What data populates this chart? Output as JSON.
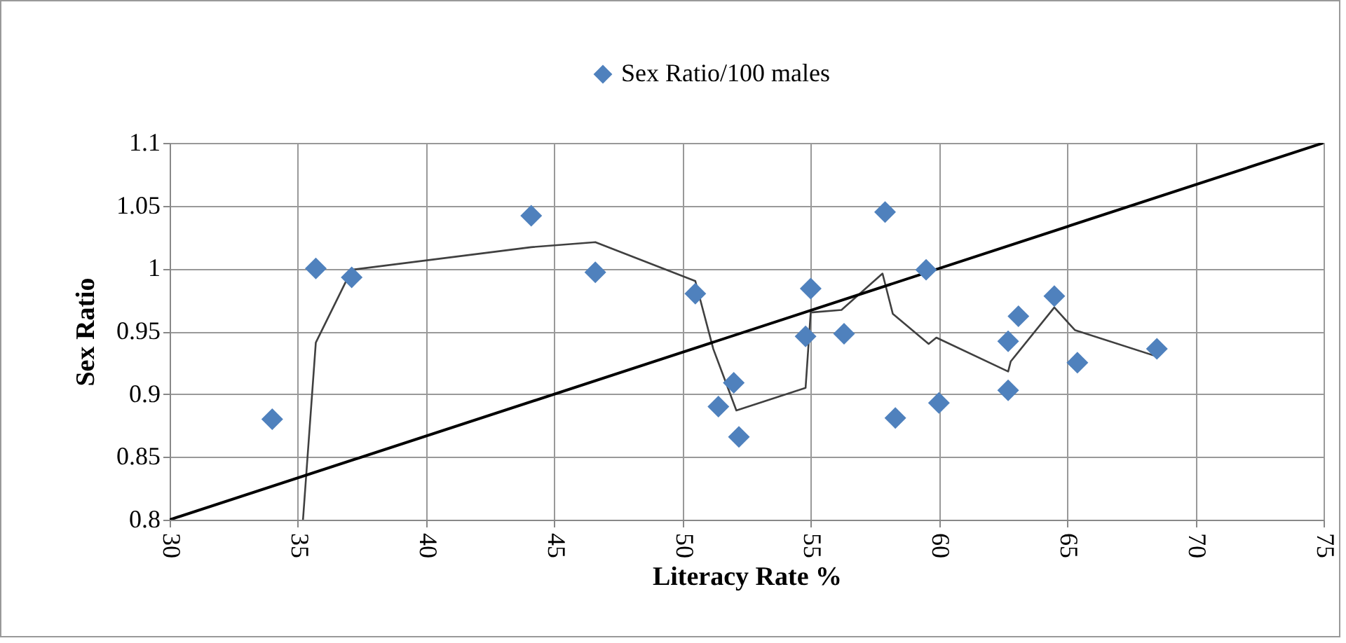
{
  "chart_data": {
    "type": "scatter",
    "xlabel": "Literacy Rate %",
    "ylabel": "Sex Ratio",
    "xlim": [
      30,
      75
    ],
    "xticks": [
      30,
      35,
      40,
      45,
      50,
      55,
      60,
      65,
      70,
      75
    ],
    "ylim": [
      0.8,
      1.1
    ],
    "yticks": [
      0.8,
      0.85,
      0.9,
      0.95,
      1,
      1.05,
      1.1
    ],
    "grid": true,
    "legend": "top",
    "series": [
      {
        "name": "Sex Ratio/100 males",
        "marker": "diamond",
        "color": "#4f81bd",
        "x": [
          34.0,
          35.7,
          37.1,
          44.1,
          46.6,
          50.5,
          51.4,
          52.0,
          52.2,
          54.8,
          55.0,
          56.3,
          57.9,
          58.3,
          59.5,
          60.0,
          62.7,
          62.7,
          63.1,
          64.5,
          65.4,
          68.5
        ],
        "values": [
          0.88,
          1.0,
          0.993,
          1.042,
          0.997,
          0.98,
          0.89,
          0.909,
          0.866,
          0.946,
          0.984,
          0.948,
          1.045,
          0.881,
          0.999,
          0.893,
          0.942,
          0.903,
          0.962,
          0.978,
          0.925,
          0.936
        ]
      },
      {
        "type": "line",
        "color": "#404040",
        "x": [
          35.2,
          35.7,
          37.1,
          44.1,
          46.6,
          50.5,
          51.2,
          52.1,
          54.8,
          55.0,
          56.2,
          57.8,
          58.2,
          59.6,
          59.9,
          62.7,
          62.8,
          64.5,
          65.3,
          68.5
        ],
        "values": [
          0.8,
          0.941,
          0.999,
          1.017,
          1.021,
          0.99,
          0.936,
          0.887,
          0.905,
          0.965,
          0.967,
          0.996,
          0.964,
          0.94,
          0.945,
          0.918,
          0.926,
          0.969,
          0.951,
          0.93
        ]
      },
      {
        "type": "line",
        "color": "#000000",
        "x": [
          30,
          75
        ],
        "values": [
          0.8,
          1.1
        ]
      }
    ]
  }
}
